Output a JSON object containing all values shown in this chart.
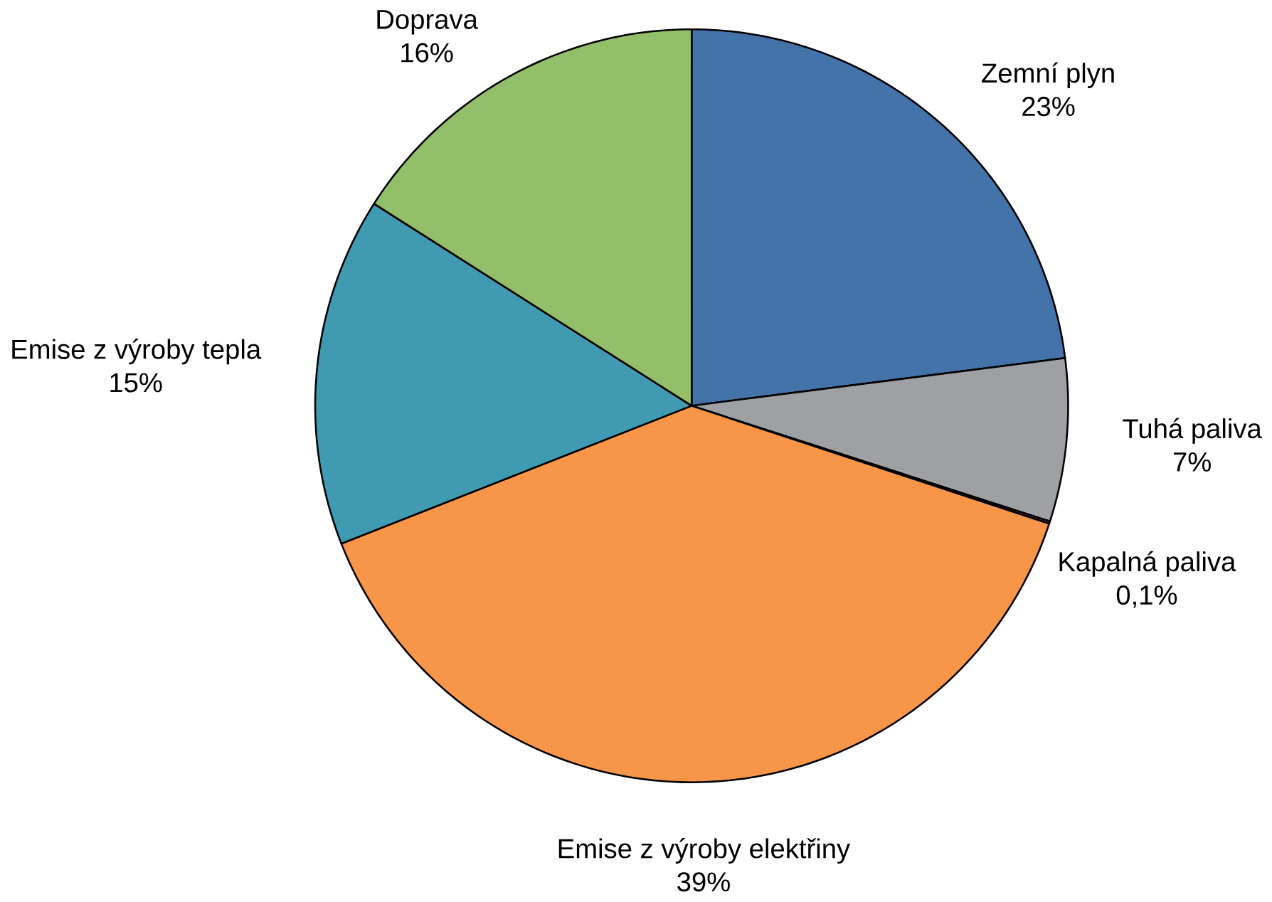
{
  "chart_data": {
    "type": "pie",
    "categories": [
      "Zemní plyn",
      "Tuhá paliva",
      "Kapalná paliva",
      "Emise z výroby elektřiny",
      "Emise z výroby tepla",
      "Doprava"
    ],
    "values": [
      23,
      7,
      0.1,
      39,
      15,
      16
    ],
    "value_labels": [
      "23%",
      "7%",
      "0,1%",
      "39%",
      "15%",
      "16%"
    ],
    "colors": [
      "#4473a9",
      "#9ea0a4",
      "#8b3a3a",
      "#f79549",
      "#409bb2",
      "#93bf6b"
    ]
  }
}
